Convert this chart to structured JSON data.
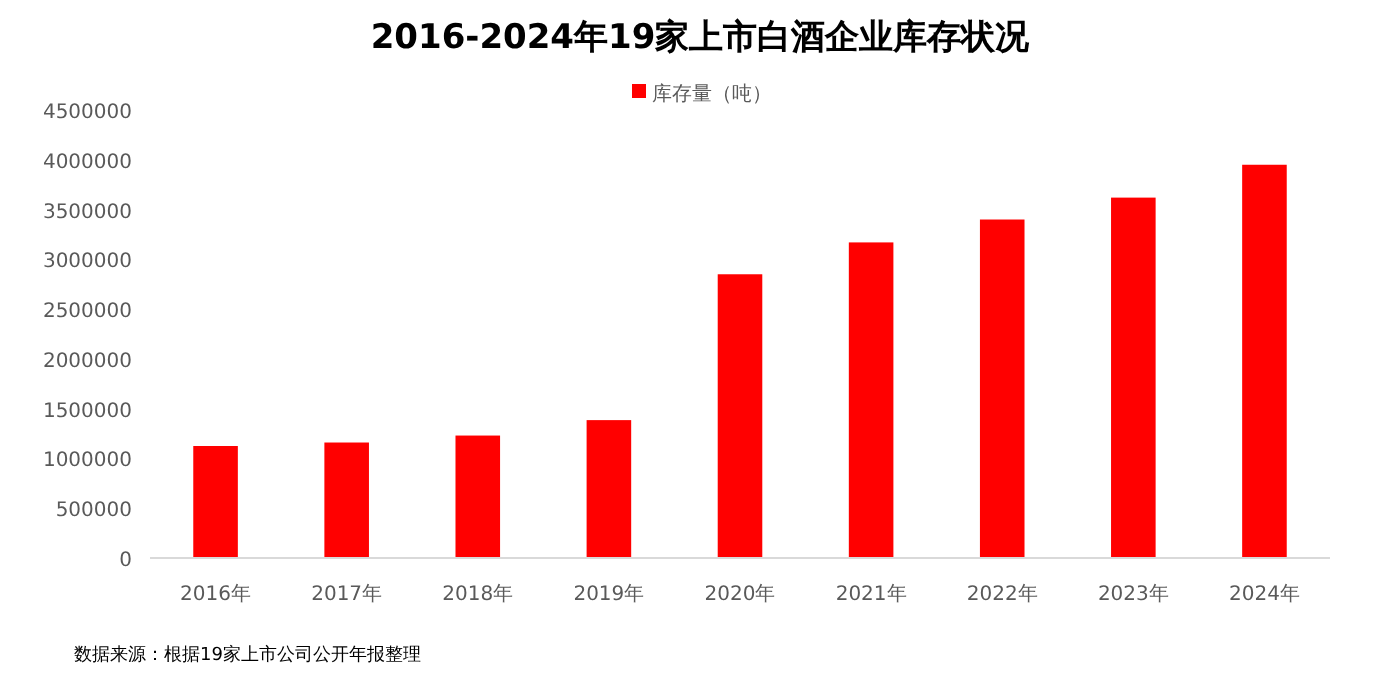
{
  "chart_data": {
    "type": "bar",
    "title": "2016-2024年19家上市白酒企业库存状况",
    "categories": [
      "2016年",
      "2017年",
      "2018年",
      "2019年",
      "2020年",
      "2021年",
      "2022年",
      "2023年",
      "2024年"
    ],
    "series": [
      {
        "name": "库存量（吨）",
        "color": "#ff0000",
        "values": [
          1125000,
          1160000,
          1230000,
          1385000,
          2850000,
          3170000,
          3400000,
          3620000,
          3950000
        ]
      }
    ],
    "ylim": [
      0,
      4500000
    ],
    "yticks": [
      0,
      500000,
      1000000,
      1500000,
      2000000,
      2500000,
      3000000,
      3500000,
      4000000,
      4500000
    ],
    "legend": "top",
    "annotations": [
      "数据来源：根据19家上市公司公开年报整理"
    ]
  }
}
